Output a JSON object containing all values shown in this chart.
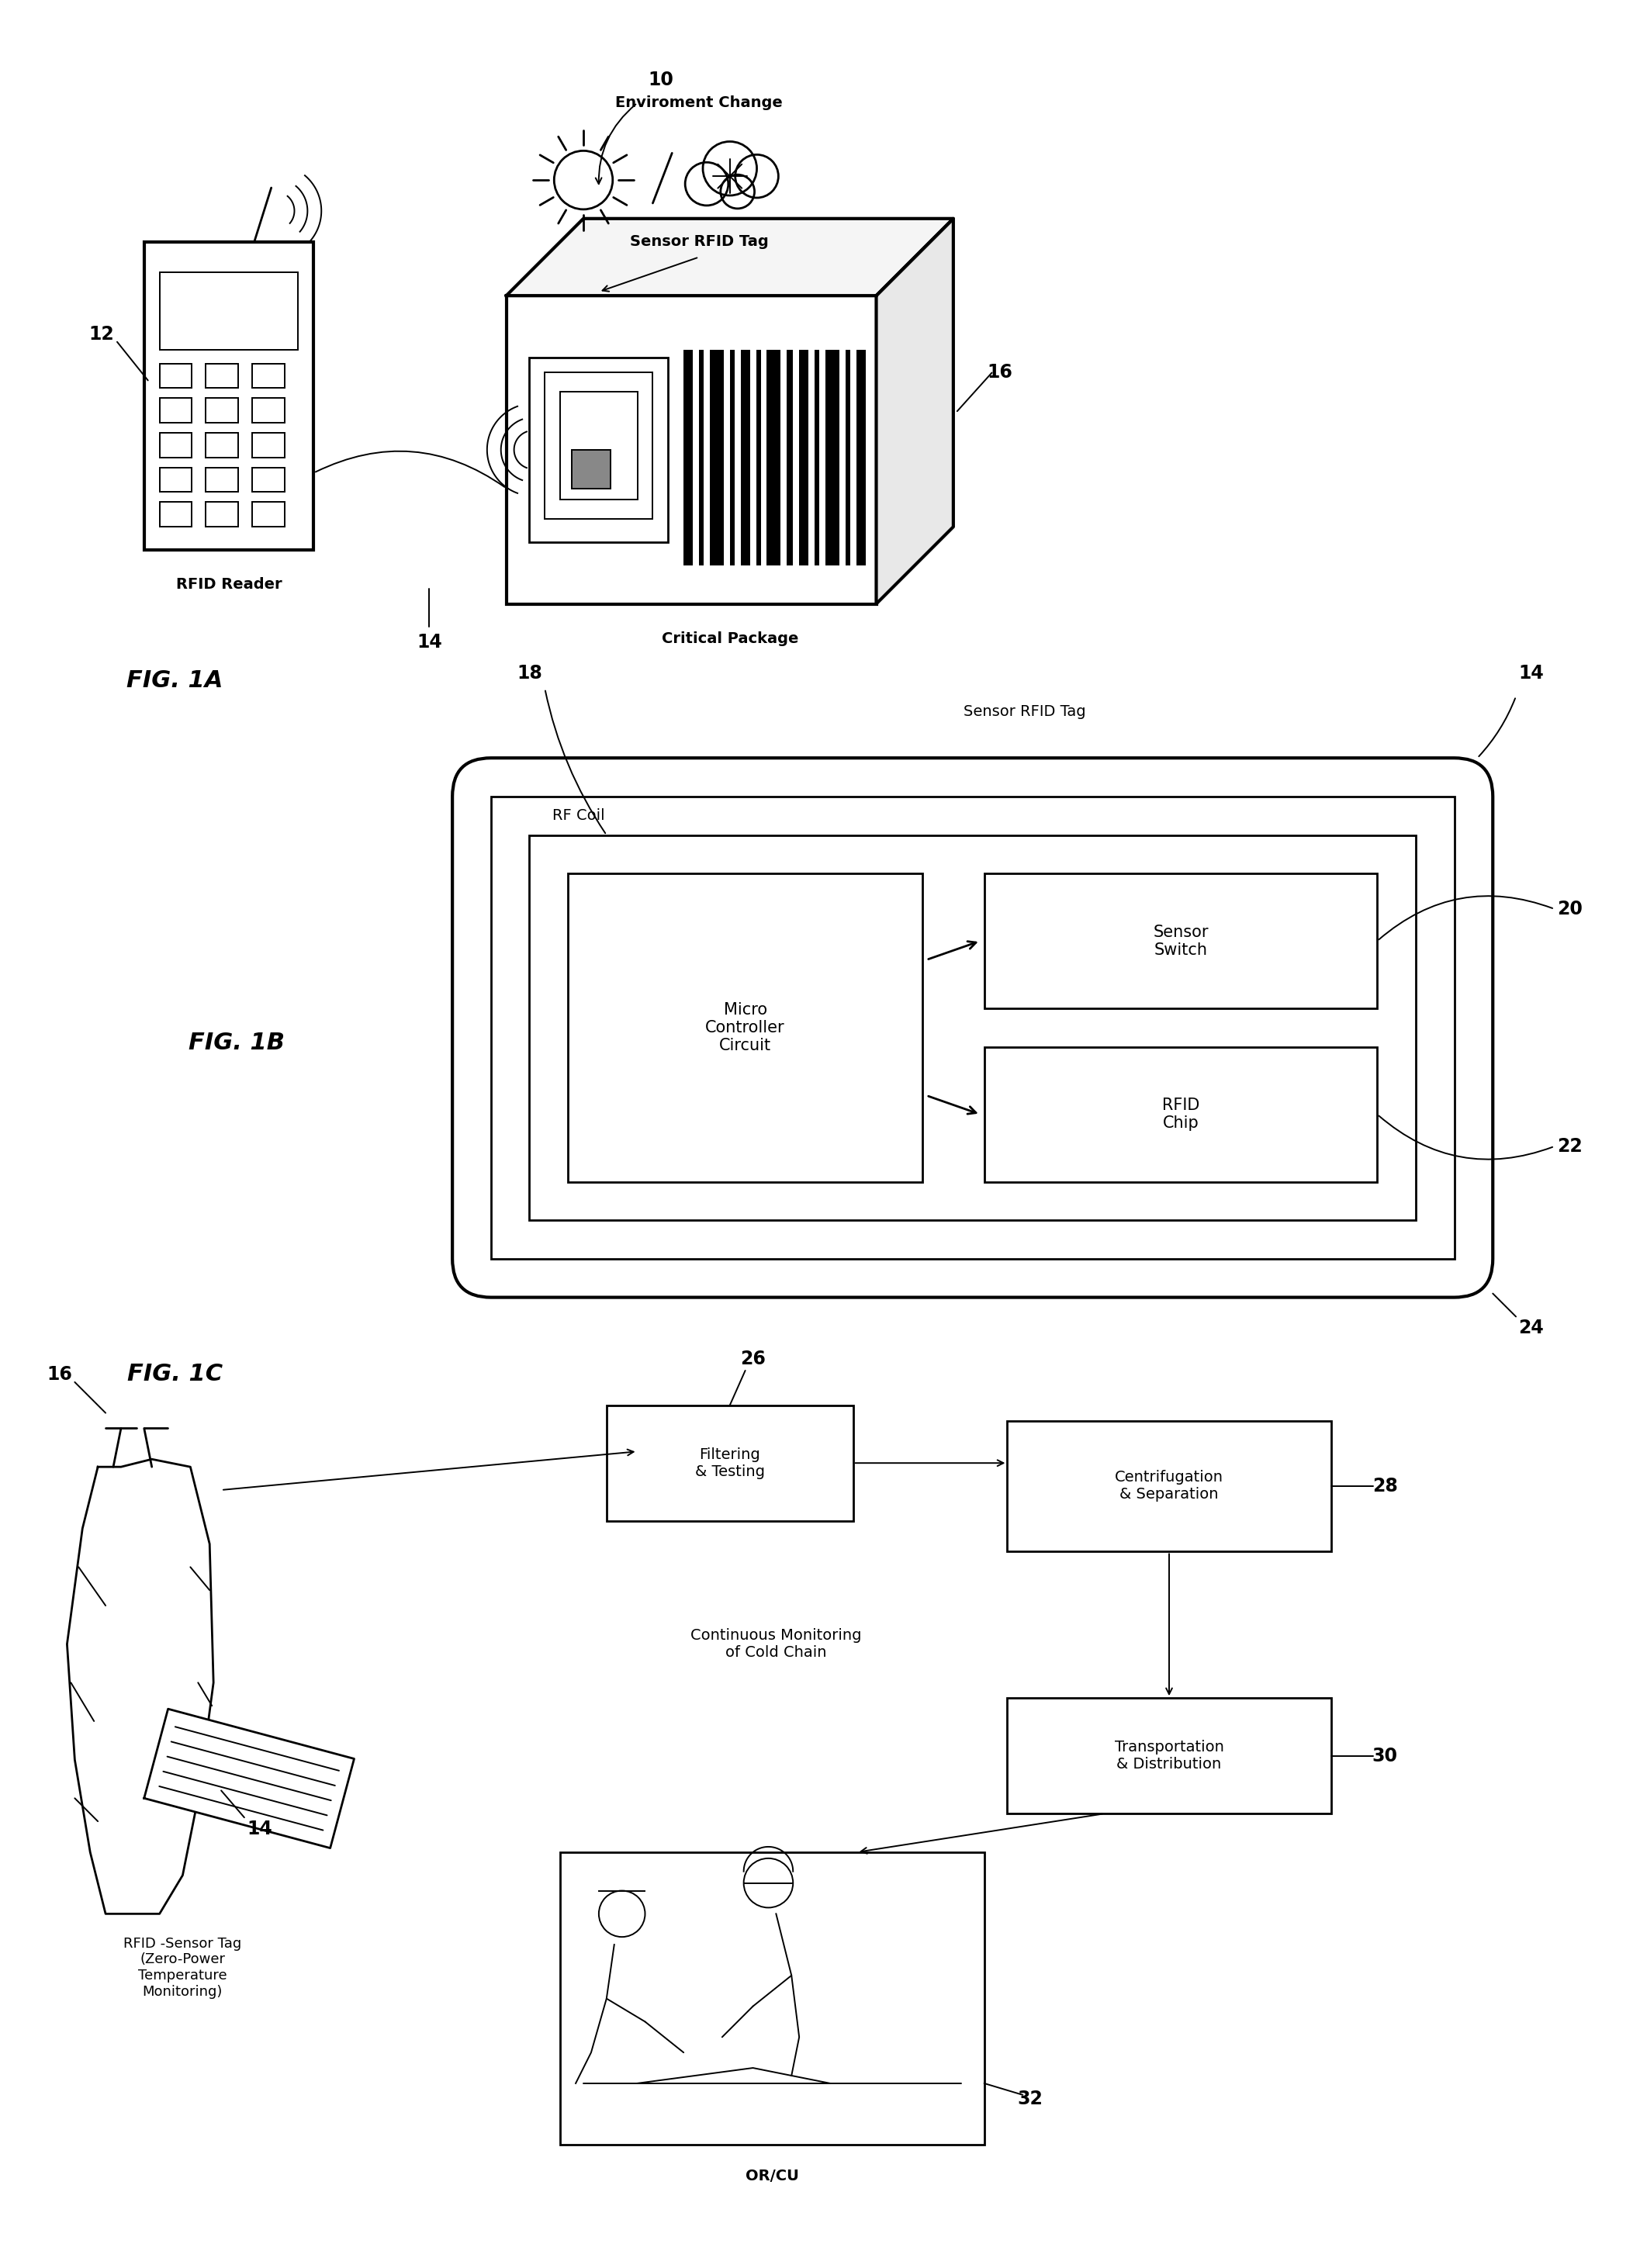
{
  "bg_color": "#ffffff",
  "line_color": "#000000",
  "fig_labels": {
    "fig1a": "FIG. 1A",
    "fig1b": "FIG. 1B",
    "fig1c": "FIG. 1C"
  },
  "ref_numbers": {
    "n10": "10",
    "n12": "12",
    "n14": "14",
    "n16": "16",
    "n18": "18",
    "n20": "20",
    "n22": "22",
    "n24": "24",
    "n26": "26",
    "n28": "28",
    "n30": "30",
    "n32": "32"
  },
  "labels": {
    "env_change": "Enviroment Change",
    "sensor_rfid_tag": "Sensor RFID Tag",
    "rfid_reader": "RFID Reader",
    "critical_package": "Critical Package",
    "rf_coil": "RF Coil",
    "sensor_rfid_tag2": "Sensor RFID Tag",
    "micro_controller": "Micro\nController\nCircuit",
    "sensor_switch": "Sensor\nSwitch",
    "rfid_chip": "RFID\nChip",
    "filtering": "Filtering\n& Testing",
    "centrifugation": "Centrifugation\n& Separation",
    "continuous_monitoring": "Continuous Monitoring\nof Cold Chain",
    "transportation": "Transportation\n& Distribution",
    "rfid_sensor_tag": "RFID -Sensor Tag\n(Zero-Power\nTemperature\nMonitoring)",
    "or_cu": "OR/CU"
  }
}
